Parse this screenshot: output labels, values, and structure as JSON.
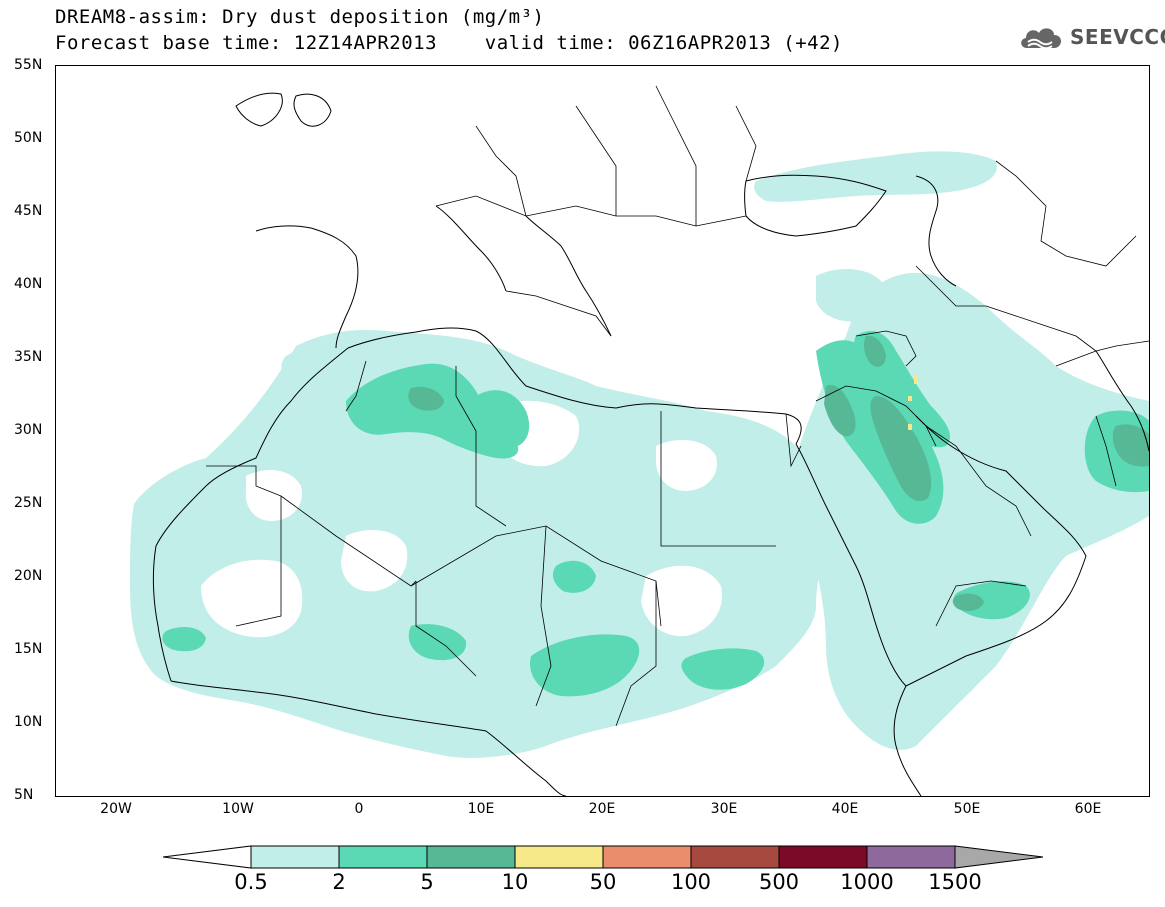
{
  "title": {
    "line1": "DREAM8-assim: Dry dust deposition (mg/m³)",
    "line2": "Forecast base time: 12Z14APR2013    valid time: 06Z16APR2013 (+42)"
  },
  "logo": {
    "text": "SEEVCCC",
    "icon": "cloud-icon"
  },
  "map": {
    "projection": "lat-lon",
    "lon_range": [
      -25,
      65
    ],
    "lat_range": [
      5,
      55
    ],
    "lat_labels": [
      "55N",
      "50N",
      "45N",
      "40N",
      "35N",
      "30N",
      "25N",
      "20N",
      "15N",
      "10N",
      "5N"
    ],
    "lon_labels": [
      "20W",
      "10W",
      "0",
      "10E",
      "20E",
      "30E",
      "40E",
      "50E",
      "60E"
    ]
  },
  "legend": {
    "labels": [
      "0.5",
      "2",
      "5",
      "10",
      "50",
      "100",
      "500",
      "1000",
      "1500"
    ],
    "colors": [
      "#ffffff",
      "#c2eee9",
      "#5ad9b4",
      "#57b896",
      "#f5e98a",
      "#e98d6c",
      "#a64a3f",
      "#7b0a29",
      "#8d6a9b",
      "#a8a8a8"
    ]
  }
}
